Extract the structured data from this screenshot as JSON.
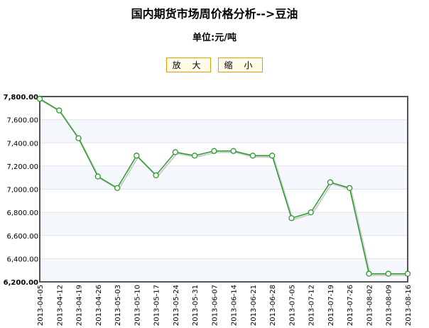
{
  "title": "国内期货市场周价格分析-->豆油",
  "subtitle": "单位:元/吨",
  "buttons": {
    "zoom_in": "放 大",
    "zoom_out": "缩 小"
  },
  "chart_data": {
    "type": "line",
    "categories": [
      "2013-04-05",
      "2013-04-12",
      "2013-04-19",
      "2013-04-26",
      "2013-05-03",
      "2013-05-10",
      "2013-05-17",
      "2013-05-24",
      "2013-05-31",
      "2013-06-07",
      "2013-06-14",
      "2013-06-21",
      "2013-06-28",
      "2013-07-05",
      "2013-07-12",
      "2013-07-19",
      "2013-07-26",
      "2013-08-02",
      "2013-08-09",
      "2013-08-16"
    ],
    "values": [
      7780,
      7680,
      7440,
      7110,
      7010,
      7290,
      7120,
      7320,
      7290,
      7330,
      7330,
      7290,
      7290,
      6750,
      6800,
      7060,
      7010,
      6270,
      6270,
      6270
    ],
    "ylim": [
      6200,
      7800
    ],
    "yticks": [
      "6,200.00",
      "6,400.00",
      "6,600.00",
      "6,800.00",
      "7,000.00",
      "7,200.00",
      "7,400.00",
      "7,600.00",
      "7,800.00"
    ],
    "grid": true,
    "line_color": "#2a9a2a"
  }
}
